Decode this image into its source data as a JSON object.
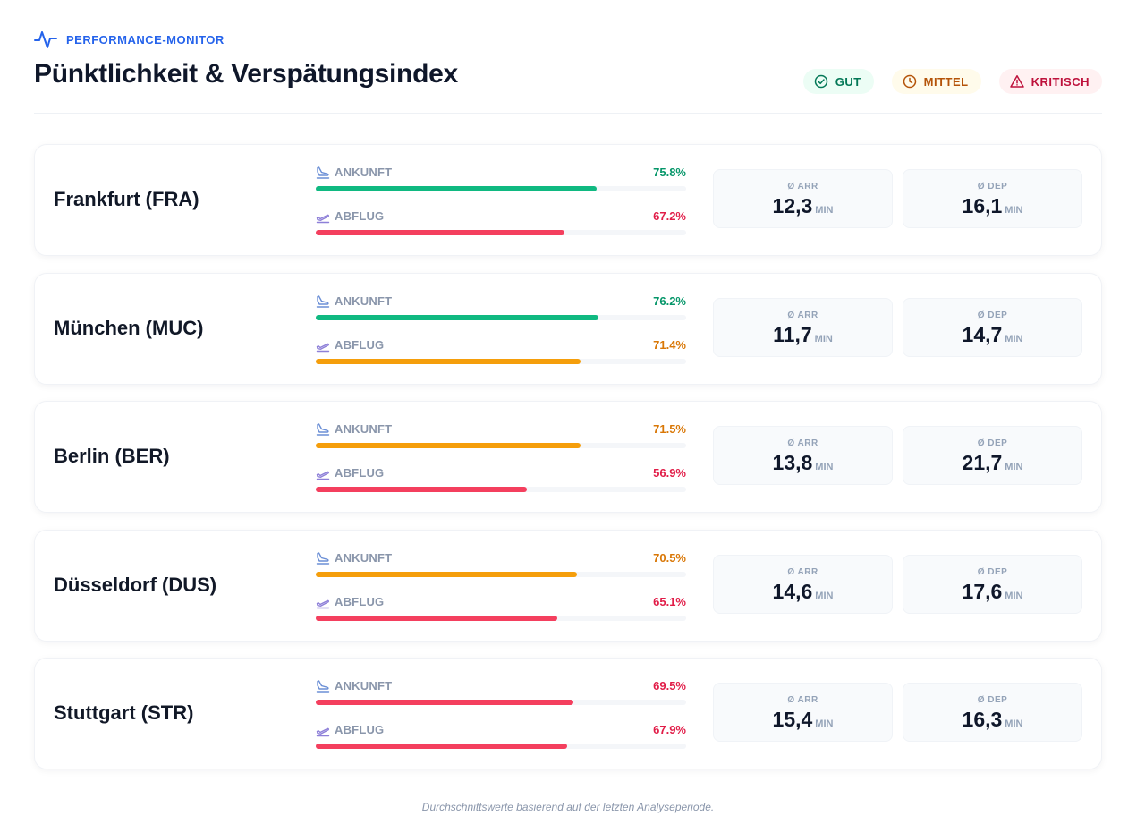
{
  "header": {
    "brand": "PERFORMANCE-MONITOR",
    "title": "Pünktlichkeit & Verspätungsindex"
  },
  "legend": {
    "good": "GUT",
    "mid": "MITTEL",
    "crit": "KRITISCH"
  },
  "colors": {
    "good": "#10b981",
    "mid": "#f59e0b",
    "crit": "#f43f5e",
    "good_text": "#059669",
    "mid_text": "#d97706",
    "crit_text": "#e11d48"
  },
  "labels": {
    "arrival": "ANKUNFT",
    "departure": "ABFLUG",
    "avg_arr": "Ø ARR",
    "avg_dep": "Ø DEP",
    "unit": "MIN"
  },
  "chart_data": {
    "type": "bar",
    "categories": [
      "Frankfurt (FRA)",
      "München (MUC)",
      "Berlin (BER)",
      "Düsseldorf (DUS)",
      "Stuttgart (STR)"
    ],
    "series": [
      {
        "name": "ANKUNFT",
        "values": [
          75.8,
          76.2,
          71.5,
          70.5,
          69.5
        ],
        "status": [
          "good",
          "good",
          "mid",
          "mid",
          "crit"
        ]
      },
      {
        "name": "ABFLUG",
        "values": [
          67.2,
          71.4,
          56.9,
          65.1,
          67.9
        ],
        "status": [
          "crit",
          "mid",
          "crit",
          "crit",
          "crit"
        ]
      }
    ],
    "ylim": [
      0,
      100
    ],
    "avg_delay_min": {
      "arr": [
        "12,3",
        "11,7",
        "13,8",
        "14,6",
        "15,4"
      ],
      "dep": [
        "16,1",
        "14,7",
        "21,7",
        "17,6",
        "16,3"
      ]
    },
    "pct_labels": {
      "arr": [
        "75.8%",
        "76.2%",
        "71.5%",
        "70.5%",
        "69.5%"
      ],
      "dep": [
        "67.2%",
        "71.4%",
        "56.9%",
        "65.1%",
        "67.9%"
      ]
    }
  },
  "footer": "Durchschnittswerte basierend auf der letzten Analyseperiode."
}
